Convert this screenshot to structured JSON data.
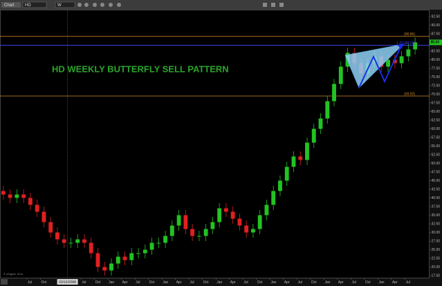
{
  "toolbar": {
    "window": "Chart",
    "symbol": "HD",
    "interval": "W"
  },
  "footer": {
    "copyright": "© eSignal, 2014"
  },
  "chart_data": {
    "type": "candlestick",
    "title": "HD WEEKLY BUTTERFLY SELL PATTERN",
    "categories": [
      null,
      null,
      null,
      null,
      "Jul",
      null,
      "Oct",
      null,
      null,
      null,
      null,
      null,
      "Jul",
      null,
      "Oct",
      null,
      "Jan",
      null,
      "Apr",
      null,
      "Jul",
      null,
      "Oct",
      null,
      "Jan",
      null,
      "Apr",
      null,
      "Jul",
      null,
      "Oct",
      null,
      "Jan",
      null,
      "Apr",
      null,
      "Jul",
      null,
      "Oct",
      null,
      "Jan",
      null,
      "Apr",
      null,
      "Jul",
      null,
      "Oct",
      null,
      "Jan",
      null,
      "Apr",
      null,
      "Jul",
      null,
      "Oct",
      null,
      "Jan",
      null,
      "Apr",
      null,
      "Jul",
      null
    ],
    "open": [
      42,
      41,
      40,
      41,
      40,
      38,
      36,
      33,
      30,
      28,
      27,
      27,
      28,
      27,
      24,
      20,
      19,
      21,
      23,
      22,
      24,
      24,
      25,
      27,
      27,
      29,
      32,
      35,
      31,
      29,
      29,
      31,
      33,
      37,
      36,
      34,
      32,
      30,
      31,
      35,
      38,
      42,
      45,
      49,
      52,
      51,
      56,
      60,
      63,
      68,
      73,
      78,
      82,
      79,
      76,
      79,
      81,
      78,
      80,
      79,
      81,
      83
    ],
    "high": [
      43.5,
      42.5,
      42.5,
      42.5,
      41.5,
      39.5,
      37.5,
      34.5,
      31.5,
      29.5,
      28.5,
      29.5,
      29.5,
      28.5,
      25.5,
      21.5,
      22.5,
      24.5,
      24.5,
      25.5,
      25.5,
      26.5,
      28.5,
      28.5,
      30.5,
      33.5,
      36.5,
      36.5,
      32.5,
      30.5,
      32.5,
      34.5,
      38.5,
      38.5,
      37.5,
      35.5,
      33.5,
      32.5,
      36.5,
      39.5,
      43.5,
      46.5,
      50.5,
      53.5,
      53.5,
      57.5,
      61.5,
      64.5,
      69.5,
      74.5,
      79.5,
      83.5,
      83.5,
      80.5,
      80.5,
      82.5,
      82.5,
      81.5,
      81.5,
      82.5,
      84.5,
      86.5
    ],
    "low": [
      39.5,
      38.5,
      38.5,
      38.5,
      36.5,
      34.5,
      31.5,
      28.5,
      26.5,
      25.5,
      25.5,
      25.5,
      25.5,
      22.5,
      18.5,
      17.5,
      17.5,
      19.5,
      20.5,
      20.5,
      22.5,
      22.5,
      23.5,
      25.5,
      25.5,
      27.5,
      30.5,
      29.5,
      27.5,
      27.5,
      27.5,
      29.5,
      31.5,
      34.5,
      32.5,
      30.5,
      28.5,
      28.5,
      29.5,
      33.5,
      36.5,
      40.5,
      43.5,
      47.5,
      49.5,
      49.5,
      54.5,
      58.5,
      61.5,
      66.5,
      71.5,
      76.5,
      77.5,
      74.5,
      74.5,
      77.5,
      76.5,
      76.5,
      77.5,
      77.5,
      79.5,
      81.5
    ],
    "close": [
      41,
      40,
      41,
      40,
      38,
      36,
      33,
      30,
      28,
      27,
      27,
      28,
      27,
      24,
      20,
      19,
      21,
      23,
      22,
      24,
      24,
      25,
      27,
      27,
      29,
      32,
      35,
      31,
      29,
      29,
      31,
      33,
      37,
      36,
      34,
      32,
      30,
      31,
      35,
      38,
      42,
      45,
      49,
      52,
      51,
      56,
      60,
      63,
      68,
      73,
      78,
      82,
      79,
      76,
      79,
      81,
      78,
      80,
      79,
      81,
      83,
      85.03
    ],
    "last_price_label": "85.03",
    "up_color": "#22c322",
    "down_color": "#e02020",
    "crosshair_label": "03/10/2008",
    "reference_lines": [
      {
        "value": 86.8,
        "label": "(86.80)",
        "color": "#d08a2a"
      },
      {
        "value": 84.21,
        "label": "1.27 (84.21)",
        "color": "#4848ff"
      },
      {
        "value": 69.5,
        "label": "(69.50)",
        "color": "#d08a2a"
      }
    ],
    "ylim": [
      16.7,
      93.3
    ],
    "yticks": [
      {
        "value": 17.5,
        "label": "17.50"
      },
      {
        "value": 20,
        "label": "20.00"
      },
      {
        "value": 22.5,
        "label": "22.50"
      },
      {
        "value": 25,
        "label": "25.00"
      },
      {
        "value": 27.5,
        "label": "27.50"
      },
      {
        "value": 30,
        "label": "30.00"
      },
      {
        "value": 32.5,
        "label": "32.50"
      },
      {
        "value": 35,
        "label": "35.00"
      },
      {
        "value": 37.5,
        "label": "37.50"
      },
      {
        "value": 40,
        "label": "40.00"
      },
      {
        "value": 42.5,
        "label": "42.50"
      },
      {
        "value": 45,
        "label": "45.00"
      },
      {
        "value": 47.5,
        "label": "47.50"
      },
      {
        "value": 50,
        "label": "50.00"
      },
      {
        "value": 52.5,
        "label": "52.50"
      },
      {
        "value": 55,
        "label": "55.00"
      },
      {
        "value": 57.5,
        "label": "57.50"
      },
      {
        "value": 60,
        "label": "60.00"
      },
      {
        "value": 62.5,
        "label": "62.50"
      },
      {
        "value": 65,
        "label": "65.00"
      },
      {
        "value": 67.5,
        "label": "67.50"
      },
      {
        "value": 70,
        "label": "70.00"
      },
      {
        "value": 72.5,
        "label": "72.50"
      },
      {
        "value": 75,
        "label": "75.00"
      },
      {
        "value": 77.5,
        "label": "77.50"
      },
      {
        "value": 80,
        "label": "80.00"
      },
      {
        "value": 82.5,
        "label": "82.50"
      },
      {
        "value": 85,
        "label": "85.00"
      },
      {
        "value": 87.5,
        "label": "87.50"
      },
      {
        "value": 90,
        "label": "90.00"
      },
      {
        "value": 92.5,
        "label": "92.50"
      }
    ]
  }
}
